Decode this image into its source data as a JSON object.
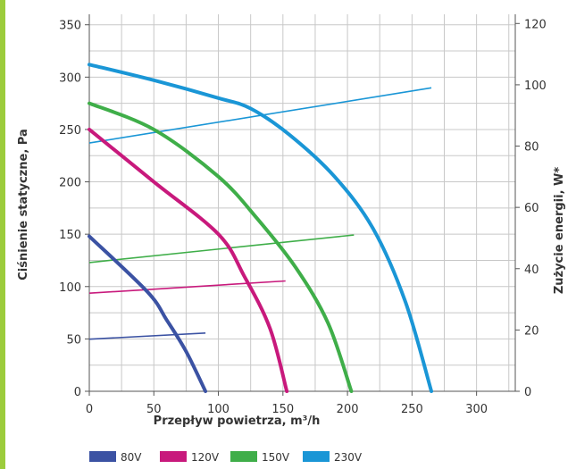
{
  "chart_data": {
    "type": "line",
    "xlabel": "Przepływ powietrza, m³/h",
    "ylabel": "Ciśnienie statyczne, Pa",
    "y2label": "Zużycie energii, W*",
    "xlim": [
      0,
      330
    ],
    "ylim": [
      0,
      360
    ],
    "y2lim": [
      0,
      123
    ],
    "xticks": [
      "0",
      "50",
      "100",
      "150",
      "200",
      "250",
      "300"
    ],
    "yticks": [
      "0",
      "50",
      "100",
      "150",
      "200",
      "250",
      "300",
      "350"
    ],
    "y2ticks": [
      "0",
      "20",
      "40",
      "60",
      "80",
      "100",
      "120"
    ],
    "grid": true,
    "legend_position": "bottom",
    "colors": {
      "80V": "#3b52a3",
      "120V": "#c8197c",
      "150V": "#3fae49",
      "230V": "#1a96d6",
      "frame": "#9ccc3c",
      "grid": "#c8c8c8"
    },
    "series": [
      {
        "name": "80V",
        "color": "#3b52a3",
        "pressure": [
          [
            0,
            148
          ],
          [
            45,
            95
          ],
          [
            60,
            68
          ],
          [
            75,
            38
          ],
          [
            90,
            0
          ]
        ],
        "power": [
          [
            0,
            17
          ],
          [
            90,
            19
          ]
        ]
      },
      {
        "name": "120V",
        "color": "#c8197c",
        "pressure": [
          [
            0,
            250
          ],
          [
            50,
            200
          ],
          [
            100,
            150
          ],
          [
            120,
            110
          ],
          [
            140,
            60
          ],
          [
            153,
            0
          ]
        ],
        "power": [
          [
            0,
            32
          ],
          [
            152,
            36
          ]
        ]
      },
      {
        "name": "150V",
        "color": "#3fae49",
        "pressure": [
          [
            0,
            275
          ],
          [
            50,
            250
          ],
          [
            100,
            205
          ],
          [
            130,
            165
          ],
          [
            160,
            118
          ],
          [
            185,
            65
          ],
          [
            203,
            0
          ]
        ],
        "power": [
          [
            0,
            42
          ],
          [
            205,
            51
          ]
        ]
      },
      {
        "name": "230V",
        "color": "#1a96d6",
        "pressure": [
          [
            0,
            312
          ],
          [
            50,
            297
          ],
          [
            100,
            280
          ],
          [
            125,
            270
          ],
          [
            155,
            245
          ],
          [
            190,
            205
          ],
          [
            220,
            155
          ],
          [
            245,
            85
          ],
          [
            265,
            0
          ]
        ],
        "power": [
          [
            0,
            81
          ],
          [
            265,
            99
          ]
        ]
      }
    ]
  }
}
